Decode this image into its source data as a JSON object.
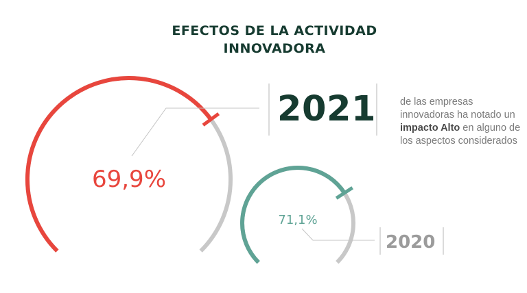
{
  "title": {
    "line1": "EFECTOS DE LA ACTIVIDAD",
    "line2": "INNOVADORA"
  },
  "description": {
    "part1": "de las empresas innovadoras ha notado un ",
    "bold": "impacto Alto",
    "part2": " en alguno de los aspectos considerados"
  },
  "colors": {
    "gauge_2021": "#e8463d",
    "gauge_2020": "#5fa395",
    "track": "#c8c8c8",
    "title": "#163b30"
  },
  "chart_data": [
    {
      "type": "gauge",
      "series": [
        {
          "name": "2021",
          "values": [
            69.9
          ]
        }
      ],
      "label": "69,9%",
      "year_label": "2021",
      "range": [
        0,
        100
      ]
    },
    {
      "type": "gauge",
      "series": [
        {
          "name": "2020",
          "values": [
            71.1
          ]
        }
      ],
      "label": "71,1%",
      "year_label": "2020",
      "range": [
        0,
        100
      ]
    }
  ]
}
